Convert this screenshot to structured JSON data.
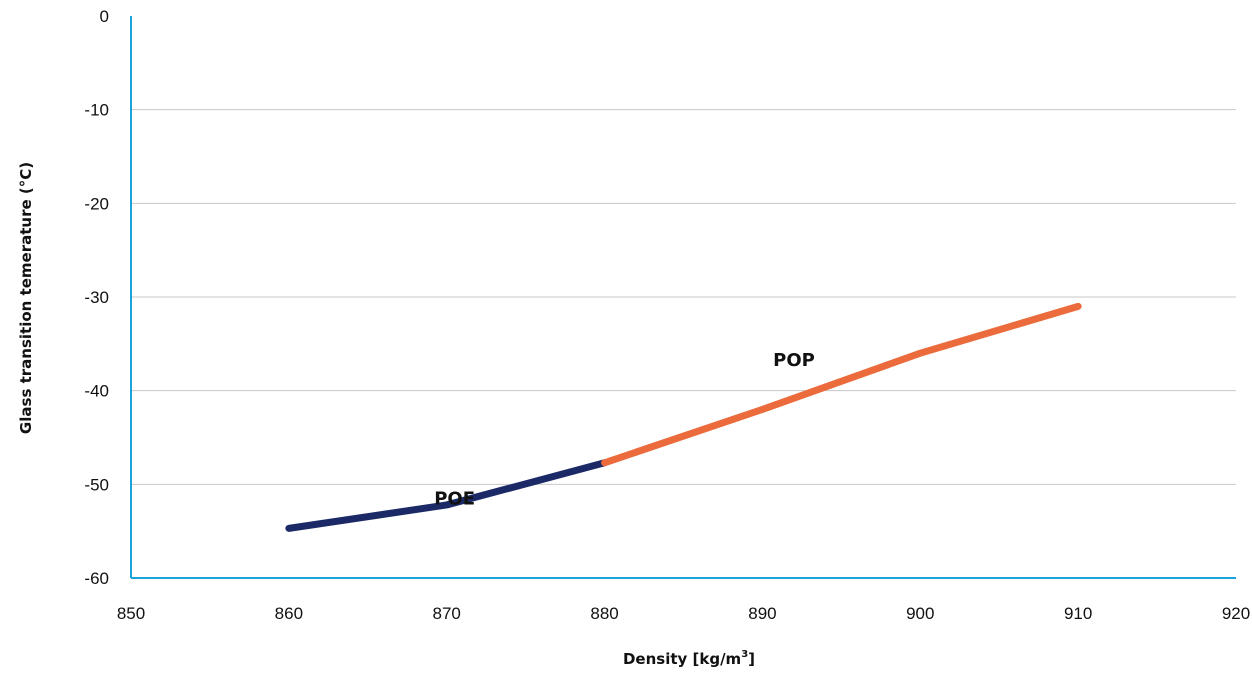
{
  "chart_data": {
    "type": "line",
    "title": "",
    "xlabel": "Density [kg/m³]",
    "xlabel_main": "Density [kg/m",
    "xlabel_sup": "3",
    "xlabel_tail": "]",
    "ylabel": "Glass transition temerature (°C)",
    "xlim": [
      850,
      920
    ],
    "ylim": [
      -60,
      0
    ],
    "x_ticks": [
      850,
      860,
      870,
      880,
      890,
      900,
      910,
      920
    ],
    "y_ticks": [
      0,
      -10,
      -20,
      -30,
      -40,
      -50,
      -60
    ],
    "grid": true,
    "series": [
      {
        "name": "POE",
        "color": "#1b2a66",
        "x": [
          860,
          870,
          880
        ],
        "y": [
          -54.7,
          -52.2,
          -47.7
        ]
      },
      {
        "name": "POP",
        "color": "#ec6b3c",
        "x": [
          880,
          890,
          900,
          910
        ],
        "y": [
          -47.7,
          -42.0,
          -36.0,
          -31.0
        ]
      }
    ],
    "colors": {
      "axis": "#1ba3dc",
      "grid": "#c8c8c8"
    }
  }
}
